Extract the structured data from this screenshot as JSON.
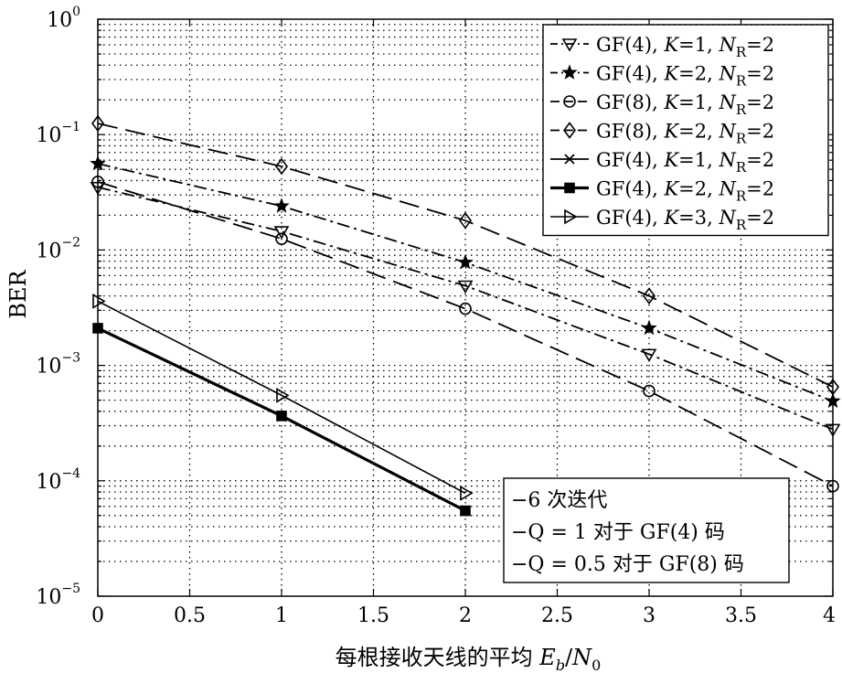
{
  "chart_data": {
    "type": "line",
    "xlabel": "每根接收天线的平均 E_b/N_0",
    "ylabel": "BER",
    "xlim": [
      0,
      4
    ],
    "ylim": [
      1e-05,
      1
    ],
    "yscale": "log",
    "grid": true,
    "legend_position": "top-right",
    "x_ticks": [
      "0",
      "0.5",
      "1",
      "1.5",
      "2",
      "2.5",
      "3",
      "3.5",
      "4"
    ],
    "y_ticks": [
      {
        "base": "10",
        "exp": "0"
      },
      {
        "base": "10",
        "exp": "−1"
      },
      {
        "base": "10",
        "exp": "−2"
      },
      {
        "base": "10",
        "exp": "−3"
      },
      {
        "base": "10",
        "exp": "−4"
      },
      {
        "base": "10",
        "exp": "−5"
      }
    ],
    "series": [
      {
        "name": {
          "pre": "GF(4), ",
          "k": "K",
          "mid": "=1, ",
          "n": "N",
          "sub": "R",
          "post": "=2"
        },
        "marker": "triangle-down",
        "dash": "14 5 3 5",
        "width": 1.8,
        "x": [
          0,
          1,
          2,
          3,
          4
        ],
        "y": [
          0.035,
          0.0145,
          0.0049,
          0.00125,
          0.00028
        ]
      },
      {
        "name": {
          "pre": "GF(4), ",
          "k": "K",
          "mid": "=2, ",
          "n": "N",
          "sub": "R",
          "post": "=2"
        },
        "marker": "star",
        "dash": "14 5 3 5",
        "width": 1.8,
        "x": [
          0,
          1,
          2,
          3,
          4
        ],
        "y": [
          0.056,
          0.024,
          0.0078,
          0.0021,
          0.00049
        ]
      },
      {
        "name": {
          "pre": "GF(8), ",
          "k": "K",
          "mid": "=1, ",
          "n": "N",
          "sub": "R",
          "post": "=2"
        },
        "marker": "circle",
        "dash": "22 9",
        "width": 1.8,
        "x": [
          0,
          1,
          2,
          3,
          4
        ],
        "y": [
          0.039,
          0.0125,
          0.0031,
          0.0006,
          9e-05
        ]
      },
      {
        "name": {
          "pre": "GF(8), ",
          "k": "K",
          "mid": "=2, ",
          "n": "N",
          "sub": "R",
          "post": "=2"
        },
        "marker": "diamond",
        "dash": "22 9",
        "width": 1.8,
        "x": [
          0,
          1,
          2,
          3,
          4
        ],
        "y": [
          0.125,
          0.053,
          0.018,
          0.004,
          0.00065
        ]
      },
      {
        "name": {
          "pre": "GF(4), ",
          "k": "K",
          "mid": "=1, ",
          "n": "N",
          "sub": "R",
          "post": "=2"
        },
        "marker": "x",
        "dash": "",
        "width": 1.8,
        "x": [
          0,
          1,
          2
        ],
        "y": [
          0.0021,
          0.00036,
          5.5e-05
        ]
      },
      {
        "name": {
          "pre": "GF(4), ",
          "k": "K",
          "mid": "=2, ",
          "n": "N",
          "sub": "R",
          "post": "=2"
        },
        "marker": "square",
        "dash": "",
        "width": 3.2,
        "x": [
          0,
          1,
          2
        ],
        "y": [
          0.0021,
          0.000365,
          5.5e-05
        ]
      },
      {
        "name": {
          "pre": "GF(4), ",
          "k": "K",
          "mid": "=3, ",
          "n": "N",
          "sub": "R",
          "post": "=2"
        },
        "marker": "triangle-right",
        "dash": "",
        "width": 1.6,
        "x": [
          0,
          1,
          2
        ],
        "y": [
          0.0036,
          0.00055,
          7.8e-05
        ]
      }
    ],
    "annotations": [
      "−6 次迭代",
      "−Q = 1 对于 GF(4) 码",
      "−Q = 0.5 对于 GF(8) 码"
    ]
  }
}
